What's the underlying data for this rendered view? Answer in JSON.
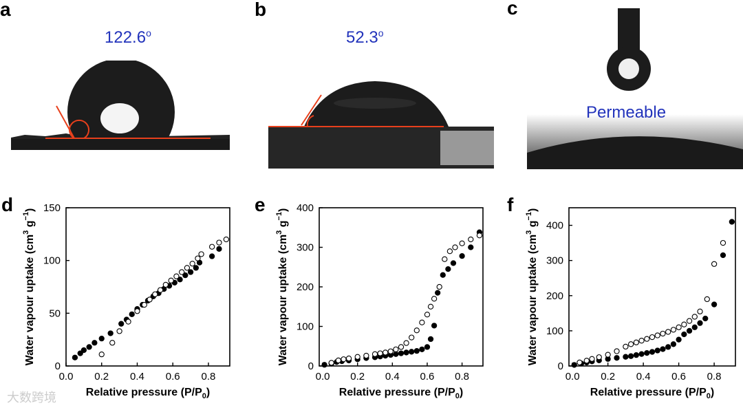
{
  "panels": {
    "a": {
      "letter": "a",
      "angle": "122.6",
      "degree": "o"
    },
    "b": {
      "letter": "b",
      "angle": "52.3",
      "degree": "o"
    },
    "c": {
      "letter": "c",
      "label": "Permeable"
    },
    "d": {
      "letter": "d"
    },
    "e": {
      "letter": "e"
    },
    "f": {
      "letter": "f"
    }
  },
  "colors": {
    "accent_text": "#2233bb",
    "contact_line": "#e8401c"
  },
  "watermark": "大数跨境",
  "chart_data": [
    {
      "type": "scatter",
      "xlabel": "Relative pressure (P/P0)",
      "ylabel": "Water vapour uptake (cm3 g−1)",
      "xlim": [
        0,
        0.92
      ],
      "ylim": [
        0,
        150
      ],
      "xticks": [
        0.0,
        0.2,
        0.4,
        0.6,
        0.8
      ],
      "xticklabels": [
        "0.0",
        "0.2",
        "0.4",
        "0.6",
        "0.8"
      ],
      "yticks": [
        0,
        50,
        100,
        150
      ],
      "yticklabels": [
        "0",
        "50",
        "100",
        "150"
      ],
      "series": [
        {
          "name": "adsorption",
          "filled": true,
          "x": [
            0.05,
            0.08,
            0.1,
            0.13,
            0.16,
            0.2,
            0.25,
            0.31,
            0.34,
            0.37,
            0.4,
            0.43,
            0.46,
            0.49,
            0.52,
            0.55,
            0.58,
            0.61,
            0.64,
            0.67,
            0.7,
            0.73,
            0.75,
            0.82,
            0.86
          ],
          "y": [
            8,
            12,
            15,
            18,
            22,
            26,
            31,
            40,
            44,
            49,
            54,
            58,
            62,
            66,
            69,
            73,
            76,
            79,
            82,
            86,
            89,
            93,
            98,
            104,
            111
          ]
        },
        {
          "name": "desorption",
          "filled": false,
          "x": [
            0.2,
            0.26,
            0.3,
            0.35,
            0.4,
            0.44,
            0.47,
            0.5,
            0.53,
            0.56,
            0.59,
            0.62,
            0.65,
            0.68,
            0.71,
            0.74,
            0.76,
            0.82,
            0.86,
            0.9
          ],
          "y": [
            11,
            22,
            33,
            42,
            52,
            58,
            63,
            68,
            72,
            77,
            81,
            85,
            89,
            93,
            97,
            102,
            106,
            113,
            117,
            120
          ]
        }
      ]
    },
    {
      "type": "scatter",
      "xlabel": "Relative pressure (P/P0)",
      "ylabel": "Water vapour uptake (cm3 g−1)",
      "xlim": [
        -0.02,
        0.92
      ],
      "ylim": [
        0,
        400
      ],
      "xticks": [
        0.0,
        0.2,
        0.4,
        0.6,
        0.8
      ],
      "xticklabels": [
        "0.0",
        "0.2",
        "0.4",
        "0.6",
        "0.8"
      ],
      "yticks": [
        0,
        100,
        200,
        300,
        400
      ],
      "yticklabels": [
        "0",
        "100",
        "200",
        "300",
        "400"
      ],
      "series": [
        {
          "name": "adsorption",
          "filled": true,
          "x": [
            0.01,
            0.05,
            0.08,
            0.11,
            0.15,
            0.2,
            0.25,
            0.3,
            0.33,
            0.36,
            0.39,
            0.42,
            0.45,
            0.48,
            0.51,
            0.54,
            0.57,
            0.6,
            0.62,
            0.64,
            0.66,
            0.69,
            0.72,
            0.75,
            0.8,
            0.85,
            0.9
          ],
          "y": [
            3,
            6,
            10,
            12,
            14,
            17,
            20,
            22,
            24,
            26,
            28,
            30,
            32,
            34,
            36,
            38,
            42,
            48,
            68,
            102,
            185,
            230,
            245,
            260,
            278,
            300,
            338
          ]
        },
        {
          "name": "desorption",
          "filled": false,
          "x": [
            0.05,
            0.09,
            0.12,
            0.15,
            0.2,
            0.25,
            0.3,
            0.33,
            0.36,
            0.39,
            0.42,
            0.45,
            0.48,
            0.51,
            0.54,
            0.57,
            0.6,
            0.62,
            0.64,
            0.67,
            0.7,
            0.73,
            0.76,
            0.8,
            0.85,
            0.9
          ],
          "y": [
            8,
            14,
            17,
            19,
            23,
            26,
            30,
            32,
            34,
            37,
            42,
            48,
            58,
            72,
            90,
            110,
            130,
            150,
            170,
            200,
            270,
            290,
            300,
            310,
            320,
            330
          ]
        }
      ]
    },
    {
      "type": "scatter",
      "xlabel": "Relative pressure (P/P0)",
      "ylabel": "Water vapour uptake (cm3 g−1)",
      "xlim": [
        -0.02,
        0.92
      ],
      "ylim": [
        0,
        450
      ],
      "xticks": [
        0.0,
        0.2,
        0.4,
        0.6,
        0.8
      ],
      "xticklabels": [
        "0.0",
        "0.2",
        "0.4",
        "0.6",
        "0.8"
      ],
      "yticks": [
        0,
        100,
        200,
        300,
        400
      ],
      "yticklabels": [
        "0",
        "100",
        "200",
        "300",
        "400"
      ],
      "series": [
        {
          "name": "adsorption",
          "filled": true,
          "x": [
            0.01,
            0.05,
            0.08,
            0.11,
            0.15,
            0.2,
            0.25,
            0.3,
            0.33,
            0.36,
            0.39,
            0.42,
            0.45,
            0.48,
            0.51,
            0.54,
            0.57,
            0.6,
            0.63,
            0.66,
            0.69,
            0.72,
            0.75,
            0.8,
            0.85,
            0.9
          ],
          "y": [
            3,
            7,
            10,
            13,
            16,
            20,
            23,
            26,
            28,
            31,
            34,
            37,
            40,
            44,
            48,
            54,
            62,
            75,
            90,
            100,
            110,
            122,
            135,
            175,
            315,
            410
          ]
        },
        {
          "name": "desorption",
          "filled": false,
          "x": [
            0.04,
            0.08,
            0.11,
            0.15,
            0.2,
            0.25,
            0.3,
            0.33,
            0.36,
            0.39,
            0.42,
            0.45,
            0.48,
            0.51,
            0.54,
            0.57,
            0.6,
            0.63,
            0.66,
            0.69,
            0.72,
            0.76,
            0.8,
            0.85
          ],
          "y": [
            10,
            15,
            20,
            25,
            32,
            42,
            55,
            62,
            67,
            72,
            77,
            82,
            87,
            92,
            97,
            103,
            110,
            118,
            128,
            140,
            155,
            190,
            290,
            350
          ]
        }
      ]
    }
  ]
}
